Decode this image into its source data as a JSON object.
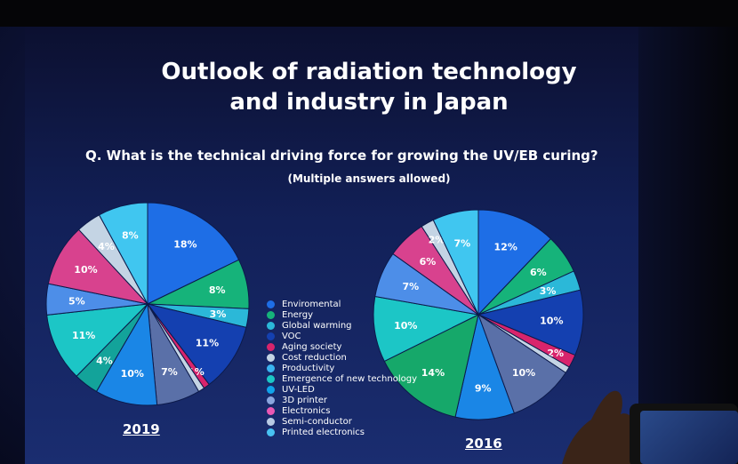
{
  "slide": {
    "title_line1": "Outlook of radiation technology",
    "title_line2": "and industry in Japan",
    "question": "Q. What is the technical driving force for growing the UV/EB curing?",
    "note": "(Multiple answers allowed)",
    "label_2019": "2019",
    "label_2016": "2016"
  },
  "legend": [
    {
      "label": "Enviromental",
      "color": "#1e6ee6"
    },
    {
      "label": "Energy",
      "color": "#16b37a"
    },
    {
      "label": "Global warming",
      "color": "#2bb8d8"
    },
    {
      "label": "VOC",
      "color": "#1440b0"
    },
    {
      "label": "Aging society",
      "color": "#d8246c"
    },
    {
      "label": "Cost reduction",
      "color": "#c4d4e4"
    },
    {
      "label": "Productivity",
      "color": "#3ab4f0"
    },
    {
      "label": "Emergence of new technology",
      "color": "#1cc6c6"
    },
    {
      "label": "UV-LED",
      "color": "#10a3ea"
    },
    {
      "label": "3D printer",
      "color": "#8aa6de"
    },
    {
      "label": "Electronics",
      "color": "#ea58b4"
    },
    {
      "label": "Semi-conductor",
      "color": "#b8cae4"
    },
    {
      "label": "Printed electronics",
      "color": "#48c2f2"
    }
  ],
  "chart_data": [
    {
      "type": "pie",
      "title": "2019",
      "slices": [
        {
          "label": "18%",
          "value": 18,
          "color": "#1e6ee6"
        },
        {
          "label": "8%",
          "value": 8,
          "color": "#16b37a"
        },
        {
          "label": "3%",
          "value": 3,
          "color": "#2bb8d8"
        },
        {
          "label": "11%",
          "value": 11,
          "color": "#1440b0"
        },
        {
          "label": "1%",
          "value": 1,
          "color": "#d8246c"
        },
        {
          "label": "",
          "value": 1,
          "color": "#c4d4e4"
        },
        {
          "label": "7%",
          "value": 7,
          "color": "#5a70a8"
        },
        {
          "label": "10%",
          "value": 10,
          "color": "#1a86e6"
        },
        {
          "label": "4%",
          "value": 4,
          "color": "#13a39a"
        },
        {
          "label": "11%",
          "value": 11,
          "color": "#1cc6c6"
        },
        {
          "label": "5%",
          "value": 5,
          "color": "#4d8ee8"
        },
        {
          "label": "10%",
          "value": 10,
          "color": "#d8428e"
        },
        {
          "label": "4%",
          "value": 4,
          "color": "#c4d4e4"
        },
        {
          "label": "8%",
          "value": 8,
          "color": "#40c6f0"
        }
      ]
    },
    {
      "type": "pie",
      "title": "2016",
      "slices": [
        {
          "label": "12%",
          "value": 12,
          "color": "#1e6ee6"
        },
        {
          "label": "6%",
          "value": 6,
          "color": "#16b37a"
        },
        {
          "label": "3%",
          "value": 3,
          "color": "#2bb8d8"
        },
        {
          "label": "10%",
          "value": 10,
          "color": "#1440b0"
        },
        {
          "label": "2%",
          "value": 2,
          "color": "#d8246c"
        },
        {
          "label": "",
          "value": 1,
          "color": "#c4d4e4"
        },
        {
          "label": "10%",
          "value": 10,
          "color": "#5a70a8"
        },
        {
          "label": "9%",
          "value": 9,
          "color": "#1a86e6"
        },
        {
          "label": "14%",
          "value": 14,
          "color": "#16a86a"
        },
        {
          "label": "10%",
          "value": 10,
          "color": "#1cc6c6"
        },
        {
          "label": "7%",
          "value": 7,
          "color": "#4d8ee8"
        },
        {
          "label": "6%",
          "value": 6,
          "color": "#d8428e"
        },
        {
          "label": "2%",
          "value": 2,
          "color": "#c4d4e4"
        },
        {
          "label": "7%",
          "value": 7,
          "color": "#40c6f0"
        }
      ]
    }
  ]
}
